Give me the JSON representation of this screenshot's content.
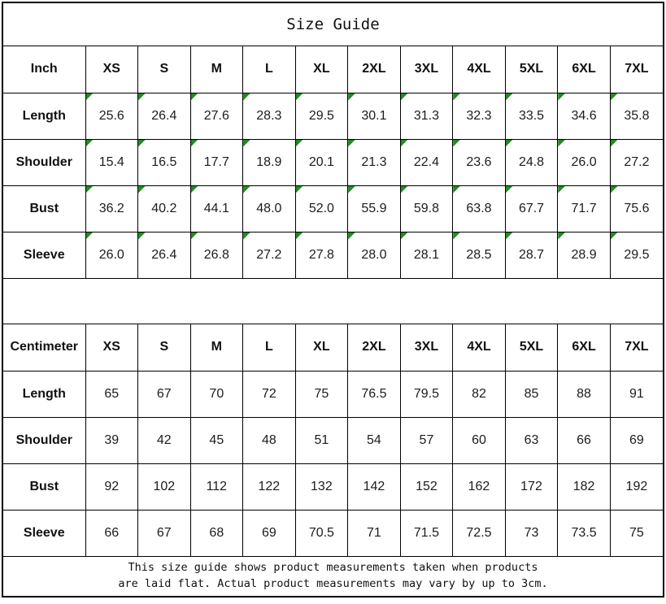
{
  "title": "Size Guide",
  "sizes": [
    "XS",
    "S",
    "M",
    "L",
    "XL",
    "2XL",
    "3XL",
    "4XL",
    "5XL",
    "6XL",
    "7XL"
  ],
  "tables": [
    {
      "unit_label": "Inch",
      "has_markers": true,
      "rows": [
        {
          "label": "Length",
          "values": [
            "25.6",
            "26.4",
            "27.6",
            "28.3",
            "29.5",
            "30.1",
            "31.3",
            "32.3",
            "33.5",
            "34.6",
            "35.8"
          ]
        },
        {
          "label": "Shoulder",
          "values": [
            "15.4",
            "16.5",
            "17.7",
            "18.9",
            "20.1",
            "21.3",
            "22.4",
            "23.6",
            "24.8",
            "26.0",
            "27.2"
          ]
        },
        {
          "label": "Bust",
          "values": [
            "36.2",
            "40.2",
            "44.1",
            "48.0",
            "52.0",
            "55.9",
            "59.8",
            "63.8",
            "67.7",
            "71.7",
            "75.6"
          ]
        },
        {
          "label": "Sleeve",
          "values": [
            "26.0",
            "26.4",
            "26.8",
            "27.2",
            "27.8",
            "28.0",
            "28.1",
            "28.5",
            "28.7",
            "28.9",
            "29.5"
          ]
        }
      ]
    },
    {
      "unit_label": "Centimeter",
      "has_markers": false,
      "rows": [
        {
          "label": "Length",
          "values": [
            "65",
            "67",
            "70",
            "72",
            "75",
            "76.5",
            "79.5",
            "82",
            "85",
            "88",
            "91"
          ]
        },
        {
          "label": "Shoulder",
          "values": [
            "39",
            "42",
            "45",
            "48",
            "51",
            "54",
            "57",
            "60",
            "63",
            "66",
            "69"
          ]
        },
        {
          "label": "Bust",
          "values": [
            "92",
            "102",
            "112",
            "122",
            "132",
            "142",
            "152",
            "162",
            "172",
            "182",
            "192"
          ]
        },
        {
          "label": "Sleeve",
          "values": [
            "66",
            "67",
            "68",
            "69",
            "70.5",
            "71",
            "71.5",
            "72.5",
            "73",
            "73.5",
            "75"
          ]
        }
      ]
    }
  ],
  "footer": {
    "line1": "This size guide shows product measurements taken when products",
    "line2": "are laid flat. Actual product measurements may vary by up to 3cm."
  },
  "colors": {
    "marker": "#228B22",
    "border": "#000000",
    "text": "#1a1a1a"
  }
}
